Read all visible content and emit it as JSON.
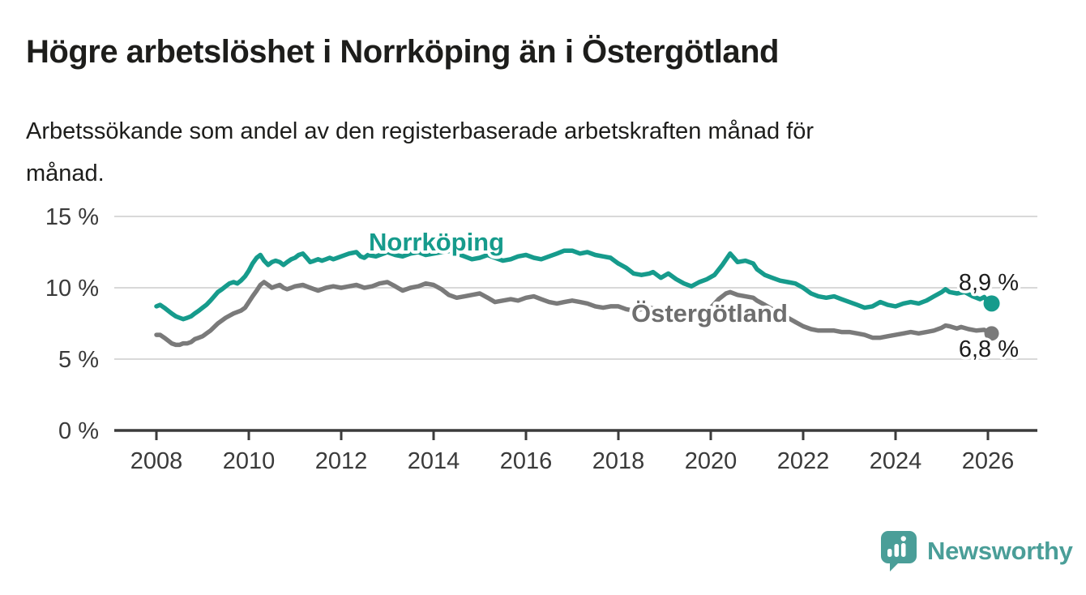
{
  "header": {
    "title": "Högre arbetslöshet i Norrköping än i Östergötland",
    "subtitle_lines": [
      "Arbetssökande som andel av den registerbaserade arbetskraften månad för",
      "månad."
    ]
  },
  "branding": {
    "logo_text": "Newsworthy",
    "logo_color": "#4a9e98",
    "logo_icon": "bar-chart-speech-bubble-icon"
  },
  "chart_data": {
    "type": "line",
    "title": "Högre arbetslöshet i Norrköping än i Östergötland",
    "subtitle": "Arbetssökande som andel av den registerbaserade arbetskraften månad för månad.",
    "grid": "horizontal",
    "legend_position": "inline-labels",
    "x_range": [
      2008.0,
      2026.08
    ],
    "ylim": [
      0,
      15
    ],
    "y_unit": "%",
    "x_axis": {
      "ticks": [
        2008,
        2010,
        2012,
        2014,
        2016,
        2018,
        2020,
        2022,
        2024,
        2026
      ]
    },
    "y_axis": {
      "ticks": [
        {
          "value": 0,
          "label": "0 %"
        },
        {
          "value": 5,
          "label": "5 %"
        },
        {
          "value": 10,
          "label": "10 %"
        },
        {
          "value": 15,
          "label": "15 %"
        }
      ]
    },
    "colors": {
      "grid": "#d9d9d9",
      "axis": "#3b3b3b",
      "tick_text": "#3a3a3a"
    },
    "series": [
      {
        "id": "norrkoping",
        "label": "Norrköping",
        "color": "#169b8c",
        "label_color": "#169b8c",
        "end_label": "8,9 %",
        "end_value": 8.9,
        "points": [
          [
            2008.0,
            8.7
          ],
          [
            2008.08,
            8.8
          ],
          [
            2008.17,
            8.6
          ],
          [
            2008.25,
            8.4
          ],
          [
            2008.33,
            8.2
          ],
          [
            2008.42,
            8.0
          ],
          [
            2008.5,
            7.9
          ],
          [
            2008.58,
            7.8
          ],
          [
            2008.67,
            7.9
          ],
          [
            2008.75,
            8.0
          ],
          [
            2008.83,
            8.2
          ],
          [
            2008.92,
            8.4
          ],
          [
            2009.0,
            8.6
          ],
          [
            2009.08,
            8.8
          ],
          [
            2009.17,
            9.1
          ],
          [
            2009.25,
            9.4
          ],
          [
            2009.33,
            9.7
          ],
          [
            2009.42,
            9.9
          ],
          [
            2009.5,
            10.1
          ],
          [
            2009.58,
            10.3
          ],
          [
            2009.67,
            10.4
          ],
          [
            2009.75,
            10.3
          ],
          [
            2009.83,
            10.5
          ],
          [
            2009.92,
            10.8
          ],
          [
            2010.0,
            11.2
          ],
          [
            2010.08,
            11.7
          ],
          [
            2010.17,
            12.1
          ],
          [
            2010.25,
            12.3
          ],
          [
            2010.33,
            11.9
          ],
          [
            2010.42,
            11.6
          ],
          [
            2010.5,
            11.8
          ],
          [
            2010.58,
            11.9
          ],
          [
            2010.67,
            11.8
          ],
          [
            2010.75,
            11.6
          ],
          [
            2010.83,
            11.8
          ],
          [
            2010.92,
            12.0
          ],
          [
            2011.0,
            12.1
          ],
          [
            2011.08,
            12.3
          ],
          [
            2011.17,
            12.4
          ],
          [
            2011.25,
            12.1
          ],
          [
            2011.33,
            11.8
          ],
          [
            2011.42,
            11.9
          ],
          [
            2011.5,
            12.0
          ],
          [
            2011.58,
            11.9
          ],
          [
            2011.67,
            12.0
          ],
          [
            2011.75,
            12.1
          ],
          [
            2011.83,
            12.0
          ],
          [
            2011.92,
            12.1
          ],
          [
            2012.0,
            12.2
          ],
          [
            2012.17,
            12.4
          ],
          [
            2012.33,
            12.5
          ],
          [
            2012.42,
            12.2
          ],
          [
            2012.5,
            12.1
          ],
          [
            2012.58,
            12.3
          ],
          [
            2012.75,
            12.2
          ],
          [
            2012.92,
            12.4
          ],
          [
            2013.0,
            12.5
          ],
          [
            2013.17,
            12.3
          ],
          [
            2013.33,
            12.2
          ],
          [
            2013.5,
            12.4
          ],
          [
            2013.67,
            12.5
          ],
          [
            2013.83,
            12.3
          ],
          [
            2014.0,
            12.4
          ],
          [
            2014.17,
            12.5
          ],
          [
            2014.33,
            12.6
          ],
          [
            2014.5,
            12.4
          ],
          [
            2014.67,
            12.2
          ],
          [
            2014.83,
            12.0
          ],
          [
            2015.0,
            12.1
          ],
          [
            2015.17,
            12.3
          ],
          [
            2015.33,
            12.1
          ],
          [
            2015.5,
            11.9
          ],
          [
            2015.67,
            12.0
          ],
          [
            2015.83,
            12.2
          ],
          [
            2016.0,
            12.3
          ],
          [
            2016.17,
            12.1
          ],
          [
            2016.33,
            12.0
          ],
          [
            2016.5,
            12.2
          ],
          [
            2016.67,
            12.4
          ],
          [
            2016.83,
            12.6
          ],
          [
            2017.0,
            12.6
          ],
          [
            2017.17,
            12.4
          ],
          [
            2017.33,
            12.5
          ],
          [
            2017.5,
            12.3
          ],
          [
            2017.67,
            12.2
          ],
          [
            2017.83,
            12.1
          ],
          [
            2018.0,
            11.7
          ],
          [
            2018.17,
            11.4
          ],
          [
            2018.33,
            11.0
          ],
          [
            2018.5,
            10.9
          ],
          [
            2018.67,
            11.0
          ],
          [
            2018.75,
            11.1
          ],
          [
            2018.92,
            10.7
          ],
          [
            2019.08,
            11.0
          ],
          [
            2019.25,
            10.6
          ],
          [
            2019.42,
            10.3
          ],
          [
            2019.58,
            10.1
          ],
          [
            2019.75,
            10.4
          ],
          [
            2019.92,
            10.6
          ],
          [
            2020.08,
            10.9
          ],
          [
            2020.25,
            11.6
          ],
          [
            2020.42,
            12.4
          ],
          [
            2020.5,
            12.1
          ],
          [
            2020.58,
            11.8
          ],
          [
            2020.75,
            11.9
          ],
          [
            2020.92,
            11.7
          ],
          [
            2021.0,
            11.3
          ],
          [
            2021.17,
            10.9
          ],
          [
            2021.33,
            10.7
          ],
          [
            2021.5,
            10.5
          ],
          [
            2021.67,
            10.4
          ],
          [
            2021.83,
            10.3
          ],
          [
            2022.0,
            10.0
          ],
          [
            2022.17,
            9.6
          ],
          [
            2022.33,
            9.4
          ],
          [
            2022.5,
            9.3
          ],
          [
            2022.67,
            9.4
          ],
          [
            2022.83,
            9.2
          ],
          [
            2023.0,
            9.0
          ],
          [
            2023.17,
            8.8
          ],
          [
            2023.33,
            8.6
          ],
          [
            2023.5,
            8.7
          ],
          [
            2023.67,
            9.0
          ],
          [
            2023.83,
            8.8
          ],
          [
            2024.0,
            8.7
          ],
          [
            2024.17,
            8.9
          ],
          [
            2024.33,
            9.0
          ],
          [
            2024.5,
            8.9
          ],
          [
            2024.67,
            9.1
          ],
          [
            2024.83,
            9.4
          ],
          [
            2025.0,
            9.7
          ],
          [
            2025.08,
            9.9
          ],
          [
            2025.17,
            9.7
          ],
          [
            2025.33,
            9.6
          ],
          [
            2025.5,
            9.7
          ],
          [
            2025.67,
            9.4
          ],
          [
            2025.75,
            9.3
          ],
          [
            2025.83,
            9.2
          ],
          [
            2025.92,
            9.35
          ],
          [
            2026.0,
            9.0
          ],
          [
            2026.08,
            8.9
          ]
        ]
      },
      {
        "id": "ostergotland",
        "label": "Östergötland",
        "color": "#7a7a7a",
        "label_color": "#6e6e6e",
        "end_label": "6,8 %",
        "end_value": 6.8,
        "points": [
          [
            2008.0,
            6.7
          ],
          [
            2008.08,
            6.7
          ],
          [
            2008.17,
            6.5
          ],
          [
            2008.25,
            6.3
          ],
          [
            2008.33,
            6.1
          ],
          [
            2008.42,
            6.0
          ],
          [
            2008.5,
            6.0
          ],
          [
            2008.58,
            6.1
          ],
          [
            2008.67,
            6.1
          ],
          [
            2008.75,
            6.2
          ],
          [
            2008.83,
            6.4
          ],
          [
            2008.92,
            6.5
          ],
          [
            2009.0,
            6.6
          ],
          [
            2009.17,
            7.0
          ],
          [
            2009.33,
            7.5
          ],
          [
            2009.5,
            7.9
          ],
          [
            2009.67,
            8.2
          ],
          [
            2009.83,
            8.4
          ],
          [
            2009.92,
            8.6
          ],
          [
            2010.0,
            9.0
          ],
          [
            2010.08,
            9.4
          ],
          [
            2010.17,
            9.8
          ],
          [
            2010.25,
            10.2
          ],
          [
            2010.33,
            10.4
          ],
          [
            2010.42,
            10.2
          ],
          [
            2010.5,
            10.0
          ],
          [
            2010.58,
            10.1
          ],
          [
            2010.67,
            10.2
          ],
          [
            2010.75,
            10.0
          ],
          [
            2010.83,
            9.9
          ],
          [
            2010.92,
            10.0
          ],
          [
            2011.0,
            10.1
          ],
          [
            2011.17,
            10.2
          ],
          [
            2011.33,
            10.0
          ],
          [
            2011.5,
            9.8
          ],
          [
            2011.67,
            10.0
          ],
          [
            2011.83,
            10.1
          ],
          [
            2012.0,
            10.0
          ],
          [
            2012.17,
            10.1
          ],
          [
            2012.33,
            10.2
          ],
          [
            2012.5,
            10.0
          ],
          [
            2012.67,
            10.1
          ],
          [
            2012.83,
            10.3
          ],
          [
            2013.0,
            10.4
          ],
          [
            2013.17,
            10.1
          ],
          [
            2013.33,
            9.8
          ],
          [
            2013.5,
            10.0
          ],
          [
            2013.67,
            10.1
          ],
          [
            2013.83,
            10.3
          ],
          [
            2014.0,
            10.2
          ],
          [
            2014.17,
            9.9
          ],
          [
            2014.33,
            9.5
          ],
          [
            2014.5,
            9.3
          ],
          [
            2014.67,
            9.4
          ],
          [
            2014.83,
            9.5
          ],
          [
            2015.0,
            9.6
          ],
          [
            2015.17,
            9.3
          ],
          [
            2015.33,
            9.0
          ],
          [
            2015.5,
            9.1
          ],
          [
            2015.67,
            9.2
          ],
          [
            2015.83,
            9.1
          ],
          [
            2016.0,
            9.3
          ],
          [
            2016.17,
            9.4
          ],
          [
            2016.33,
            9.2
          ],
          [
            2016.5,
            9.0
          ],
          [
            2016.67,
            8.9
          ],
          [
            2016.83,
            9.0
          ],
          [
            2017.0,
            9.1
          ],
          [
            2017.17,
            9.0
          ],
          [
            2017.33,
            8.9
          ],
          [
            2017.5,
            8.7
          ],
          [
            2017.67,
            8.6
          ],
          [
            2017.83,
            8.7
          ],
          [
            2018.0,
            8.7
          ],
          [
            2018.17,
            8.5
          ],
          [
            2018.33,
            8.4
          ],
          [
            2018.5,
            8.5
          ],
          [
            2018.67,
            8.6
          ],
          [
            2018.83,
            8.5
          ],
          [
            2019.0,
            8.4
          ],
          [
            2019.17,
            8.3
          ],
          [
            2019.33,
            8.2
          ],
          [
            2019.5,
            8.2
          ],
          [
            2019.67,
            8.3
          ],
          [
            2019.83,
            8.4
          ],
          [
            2020.0,
            8.6
          ],
          [
            2020.17,
            9.2
          ],
          [
            2020.33,
            9.6
          ],
          [
            2020.42,
            9.7
          ],
          [
            2020.58,
            9.5
          ],
          [
            2020.75,
            9.4
          ],
          [
            2020.92,
            9.3
          ],
          [
            2021.0,
            9.1
          ],
          [
            2021.17,
            8.8
          ],
          [
            2021.33,
            8.5
          ],
          [
            2021.5,
            8.2
          ],
          [
            2021.67,
            7.9
          ],
          [
            2021.83,
            7.6
          ],
          [
            2022.0,
            7.3
          ],
          [
            2022.17,
            7.1
          ],
          [
            2022.33,
            7.0
          ],
          [
            2022.5,
            7.0
          ],
          [
            2022.67,
            7.0
          ],
          [
            2022.83,
            6.9
          ],
          [
            2023.0,
            6.9
          ],
          [
            2023.17,
            6.8
          ],
          [
            2023.33,
            6.7
          ],
          [
            2023.5,
            6.5
          ],
          [
            2023.67,
            6.5
          ],
          [
            2023.83,
            6.6
          ],
          [
            2024.0,
            6.7
          ],
          [
            2024.17,
            6.8
          ],
          [
            2024.33,
            6.9
          ],
          [
            2024.5,
            6.8
          ],
          [
            2024.67,
            6.9
          ],
          [
            2024.83,
            7.0
          ],
          [
            2025.0,
            7.2
          ],
          [
            2025.08,
            7.35
          ],
          [
            2025.17,
            7.3
          ],
          [
            2025.33,
            7.15
          ],
          [
            2025.42,
            7.25
          ],
          [
            2025.58,
            7.1
          ],
          [
            2025.75,
            7.0
          ],
          [
            2025.92,
            7.05
          ],
          [
            2026.0,
            6.9
          ],
          [
            2026.08,
            6.8
          ]
        ]
      }
    ]
  }
}
